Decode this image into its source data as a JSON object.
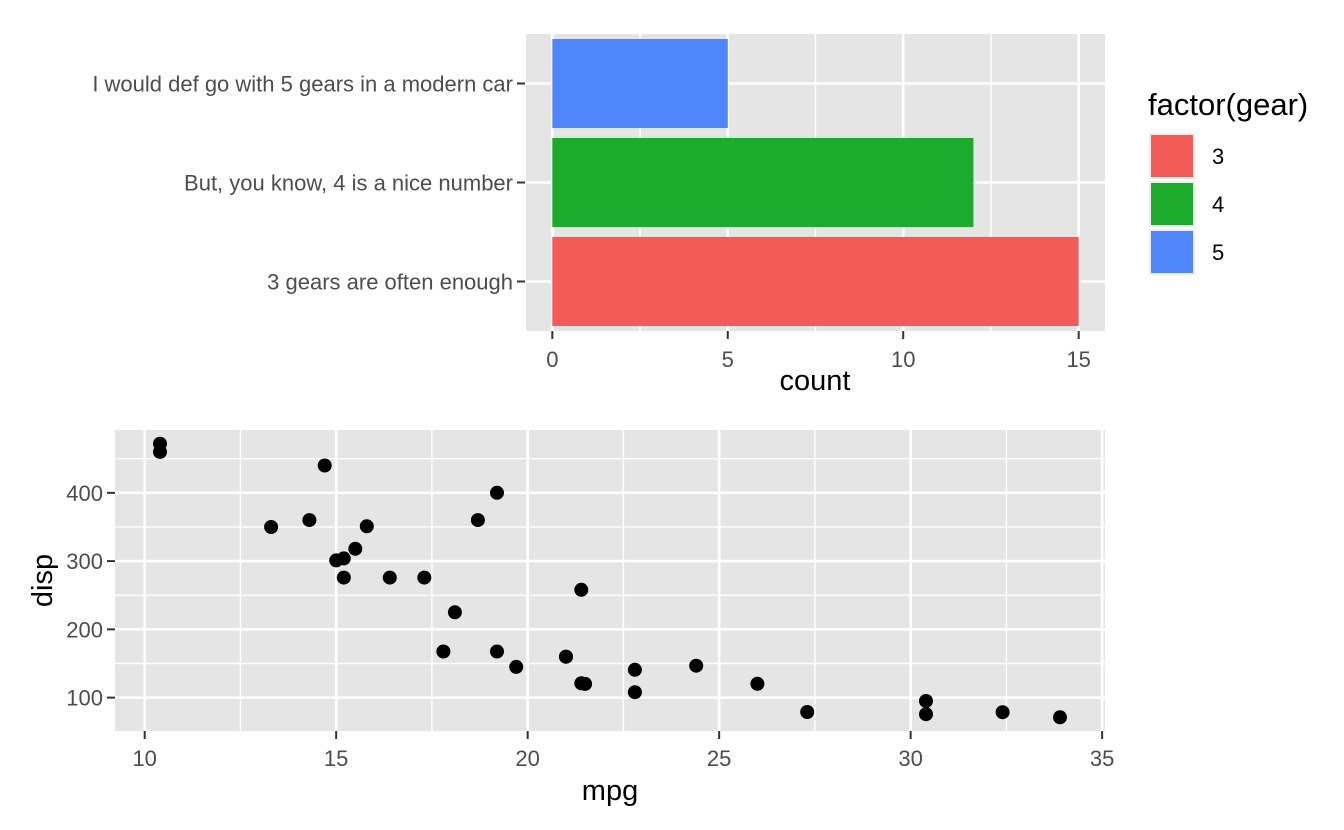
{
  "colors": {
    "panel_bg": "#E5E5E5",
    "grid": "#FFFFFF",
    "tick_mark": "#333333",
    "tick_text": "#4D4D4D",
    "title_text": "#000000",
    "point": "#000000",
    "gear3_red": "#F25B57",
    "gear4_green": "#1CAB2C",
    "gear5_blue": "#4F86FC"
  },
  "chart_data": [
    {
      "type": "bar",
      "orientation": "horizontal",
      "xlabel": "count",
      "ylabel": "",
      "xlim": [
        -0.75,
        15.75
      ],
      "x_major_ticks": [
        0,
        5,
        10,
        15
      ],
      "x_minor_ticks": [
        2.5,
        7.5,
        12.5
      ],
      "grid": true,
      "bars": [
        {
          "label": "I would def go with 5 gears in a modern car",
          "gear": "5",
          "value": 5,
          "color": "#4F86FC"
        },
        {
          "label": "But, you know, 4 is a nice number",
          "gear": "4",
          "value": 12,
          "color": "#1CAB2C"
        },
        {
          "label": "3 gears are often enough",
          "gear": "3",
          "value": 15,
          "color": "#F25B57"
        }
      ],
      "legend": {
        "title": "factor(gear)",
        "position": "right",
        "entries": [
          {
            "label": "3",
            "color": "#F25B57"
          },
          {
            "label": "4",
            "color": "#1CAB2C"
          },
          {
            "label": "5",
            "color": "#4F86FC"
          }
        ]
      }
    },
    {
      "type": "scatter",
      "xlabel": "mpg",
      "ylabel": "disp",
      "xlim": [
        9.225,
        35.075
      ],
      "ylim": [
        51.1,
        492.05
      ],
      "x_major_ticks": [
        10,
        15,
        20,
        25,
        30,
        35
      ],
      "x_minor_ticks": [
        12.5,
        17.5,
        22.5,
        27.5,
        32.5
      ],
      "y_major_ticks": [
        100,
        200,
        300,
        400
      ],
      "y_minor_ticks": [
        150,
        250,
        350,
        450
      ],
      "grid": true,
      "points": [
        [
          21.0,
          160.0
        ],
        [
          21.0,
          160.0
        ],
        [
          22.8,
          108.0
        ],
        [
          21.4,
          258.0
        ],
        [
          18.7,
          360.0
        ],
        [
          18.1,
          225.0
        ],
        [
          14.3,
          360.0
        ],
        [
          24.4,
          146.7
        ],
        [
          22.8,
          140.8
        ],
        [
          19.2,
          167.6
        ],
        [
          17.8,
          167.6
        ],
        [
          16.4,
          275.8
        ],
        [
          17.3,
          275.8
        ],
        [
          15.2,
          275.8
        ],
        [
          10.4,
          472.0
        ],
        [
          10.4,
          460.0
        ],
        [
          14.7,
          440.0
        ],
        [
          32.4,
          78.7
        ],
        [
          30.4,
          75.7
        ],
        [
          33.9,
          71.1
        ],
        [
          21.5,
          120.1
        ],
        [
          15.5,
          318.0
        ],
        [
          15.2,
          304.0
        ],
        [
          13.3,
          350.0
        ],
        [
          19.2,
          400.0
        ],
        [
          27.3,
          79.0
        ],
        [
          26.0,
          120.3
        ],
        [
          30.4,
          95.1
        ],
        [
          15.8,
          351.0
        ],
        [
          19.7,
          145.0
        ],
        [
          15.0,
          301.0
        ],
        [
          21.4,
          121.0
        ]
      ]
    }
  ]
}
